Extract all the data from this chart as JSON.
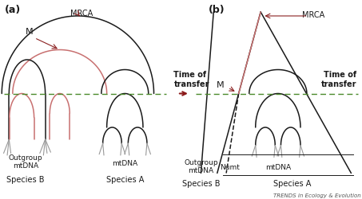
{
  "bg_color": "#ffffff",
  "panel_a_label": "(a)",
  "panel_b_label": "(b)",
  "dashed_line_color": "#4a8a2a",
  "tree_color_black": "#1a1a1a",
  "tree_color_red": "#c87070",
  "tree_color_gray": "#999999",
  "arrow_color": "#8b2020",
  "dark_red": "#8b1a1a",
  "time_of_transfer_text": "Time of\ntransfer",
  "mrca_text": "MRCA",
  "m_text": "M",
  "outgroup_mtdna_a": "Outgroup\nmtDNA",
  "mtdna_a": "mtDNA",
  "species_b_a": "Species B",
  "species_a_a": "Species A",
  "outgroup_mtdna_b": "Outgroup\nmtDNA",
  "numt_b": "Numt",
  "mtdna_b": "mtDNA",
  "species_b_b": "Species B",
  "species_a_b": "Species A",
  "trends_text": "TRENDS in Ecology & Evolution"
}
